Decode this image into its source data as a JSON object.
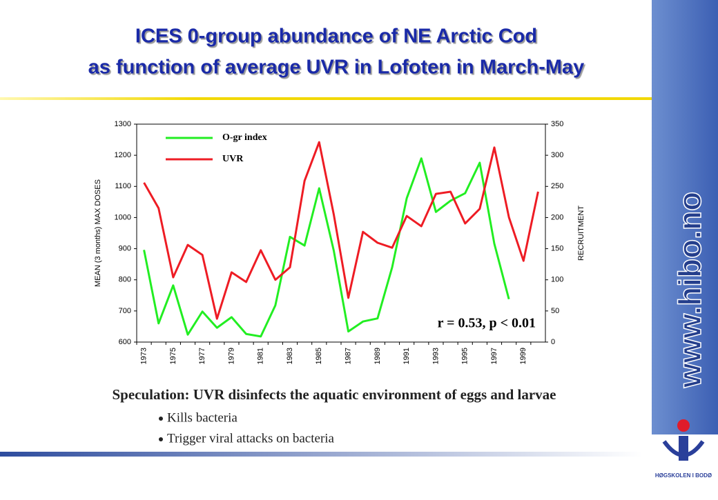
{
  "slide": {
    "title_lines": [
      "ICES 0-group abundance of NE Arctic Cod",
      "as function of average UVR in Lofoten in March-May"
    ],
    "speculation": "Speculation: UVR disinfects the aquatic environment of eggs and larvae",
    "bullets": [
      "Kills bacteria",
      "Trigger viral attacks on bacteria"
    ]
  },
  "sidebar": {
    "url": "www.hibo.no",
    "logo_text": "HØGSKOLEN I BODØ"
  },
  "chart_data": {
    "type": "line",
    "y_label": "MEAN (3 months) MAX DOSES",
    "y2_label": "RECRUITMENT",
    "annotation": "r = 0.53, p < 0.01",
    "categories": [
      "1973",
      null,
      "1975",
      null,
      "1977",
      null,
      "1979",
      null,
      "1981",
      null,
      "1983",
      null,
      "1985",
      null,
      "1987",
      null,
      "1989",
      null,
      "1991",
      null,
      "1993",
      null,
      "1995",
      null,
      "1997",
      null,
      "1999",
      null
    ],
    "series": [
      {
        "name": "O-gr index",
        "color": "#22ee22",
        "axis": "y2",
        "values": [
          148,
          30,
          91,
          12,
          49,
          23,
          40,
          13,
          9,
          59,
          169,
          155,
          247,
          147,
          17,
          33,
          38,
          120,
          231,
          295,
          209,
          227,
          239,
          288,
          158,
          69,
          null,
          null
        ]
      },
      {
        "name": "UVR",
        "color": "#ee1c24",
        "values": [
          1112,
          1030,
          808,
          912,
          880,
          675,
          824,
          793,
          895,
          800,
          840,
          1118,
          1242,
          1010,
          742,
          954,
          919,
          903,
          1005,
          972,
          1076,
          1083,
          981,
          1028,
          1225,
          1001,
          861,
          1083
        ]
      }
    ],
    "ylim": [
      600,
      1300
    ],
    "yticks": [
      600,
      700,
      800,
      900,
      1000,
      1100,
      1200,
      1300
    ],
    "y2lim": [
      0,
      350
    ],
    "y2ticks": [
      0,
      50,
      100,
      150,
      200,
      250,
      300,
      350
    ],
    "legend": "top-left"
  }
}
